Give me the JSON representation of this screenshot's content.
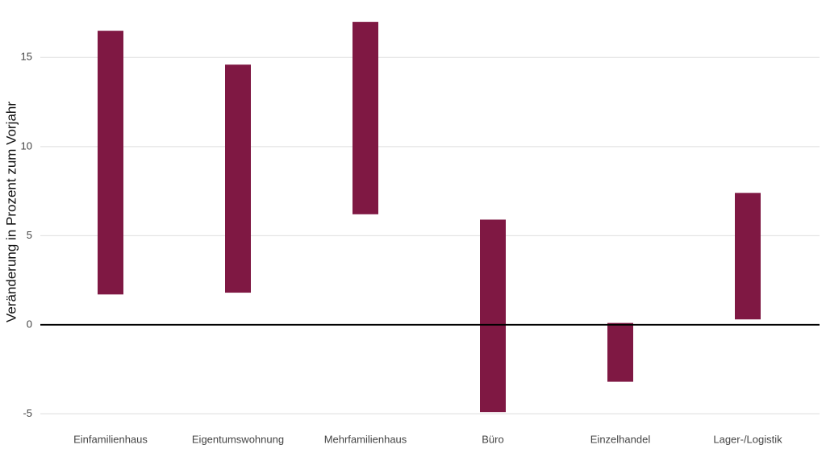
{
  "chart_data": {
    "type": "range-bar",
    "y_label": "Veränderung in Prozent zum Vorjahr",
    "categories": [
      "Einfamilienhaus",
      "Eigentumswohnung",
      "Mehrfamilienhaus",
      "Büro",
      "Einzelhandel",
      "Lager-/Logistik"
    ],
    "low": [
      1.7,
      1.8,
      6.2,
      -4.9,
      -3.2,
      0.3
    ],
    "high": [
      16.5,
      14.6,
      17.0,
      5.9,
      0.1,
      7.4
    ],
    "color": "#7f1843",
    "ylim": [
      -5.3,
      18
    ],
    "yticks": [
      -5,
      0,
      5,
      10,
      15
    ],
    "grid": true,
    "hline": 0
  }
}
